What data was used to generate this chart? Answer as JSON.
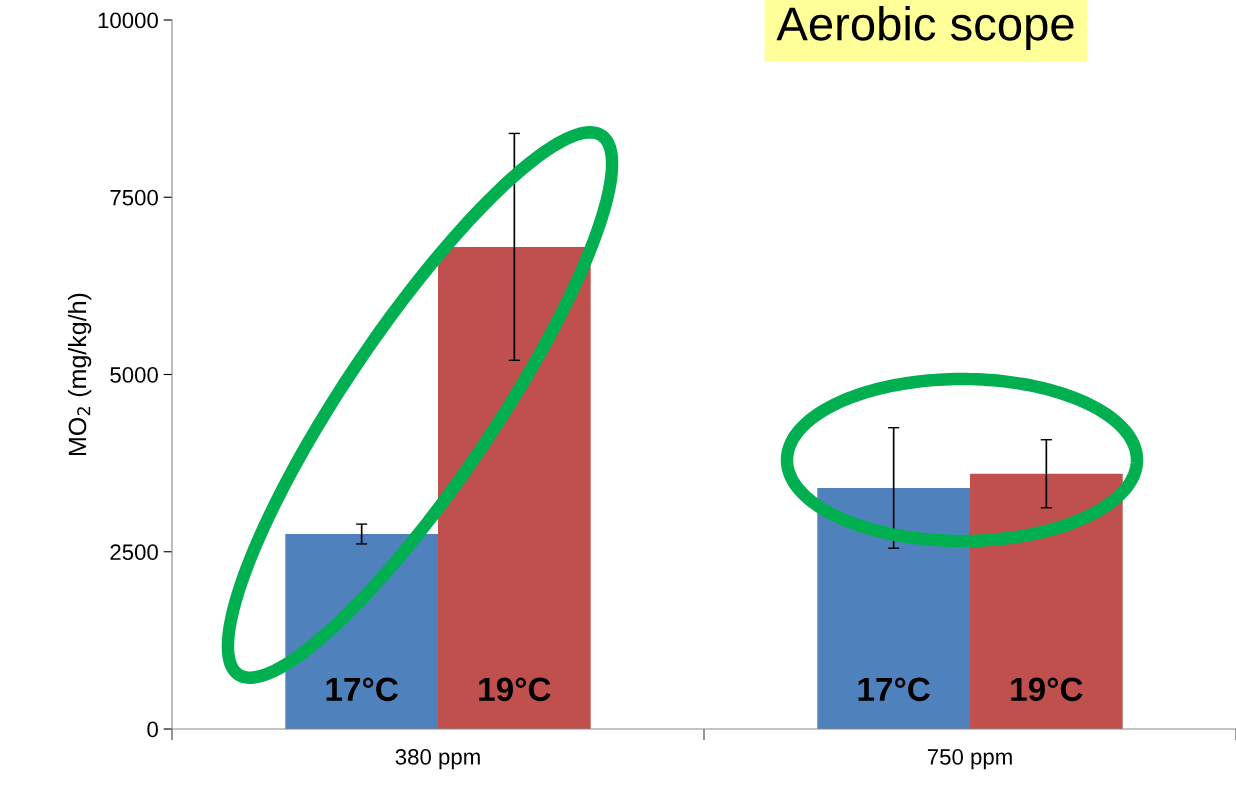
{
  "chart_data": {
    "type": "bar",
    "title": "Aerobic scope",
    "ylabel": "MO$_{2}$ (mg/kg/h)",
    "categories": [
      "380 ppm",
      "750 ppm"
    ],
    "series": [
      {
        "name": "17°C",
        "color": "#4f81bd",
        "values": [
          2750,
          3400
        ],
        "errors": [
          140,
          850
        ]
      },
      {
        "name": "19°C",
        "color": "#c0504d",
        "values": [
          6800,
          3600
        ],
        "errors": [
          1600,
          480
        ]
      }
    ],
    "ylim": [
      0,
      10000
    ],
    "yticks": [
      0,
      2500,
      5000,
      7500,
      10000
    ],
    "grid": false,
    "legend": false
  }
}
